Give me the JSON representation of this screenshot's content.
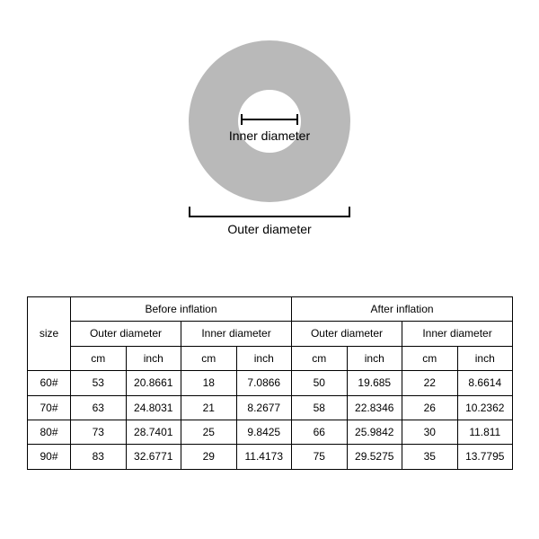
{
  "diagram": {
    "ring_color": "#b9b9b9",
    "inner_label": "Inner diameter",
    "outer_label": "Outer diameter"
  },
  "table": {
    "size_header": "size",
    "groups": [
      "Before inflation",
      "After inflation"
    ],
    "subgroups": [
      "Outer diameter",
      "Inner diameter"
    ],
    "units": [
      "cm",
      "inch"
    ],
    "rows": [
      {
        "size": "60#",
        "vals": [
          "53",
          "20.8661",
          "18",
          "7.0866",
          "50",
          "19.685",
          "22",
          "8.6614"
        ]
      },
      {
        "size": "70#",
        "vals": [
          "63",
          "24.8031",
          "21",
          "8.2677",
          "58",
          "22.8346",
          "26",
          "10.2362"
        ]
      },
      {
        "size": "80#",
        "vals": [
          "73",
          "28.7401",
          "25",
          "9.8425",
          "66",
          "25.9842",
          "30",
          "11.811"
        ]
      },
      {
        "size": "90#",
        "vals": [
          "83",
          "32.6771",
          "29",
          "11.4173",
          "75",
          "29.5275",
          "35",
          "13.7795"
        ]
      }
    ]
  }
}
